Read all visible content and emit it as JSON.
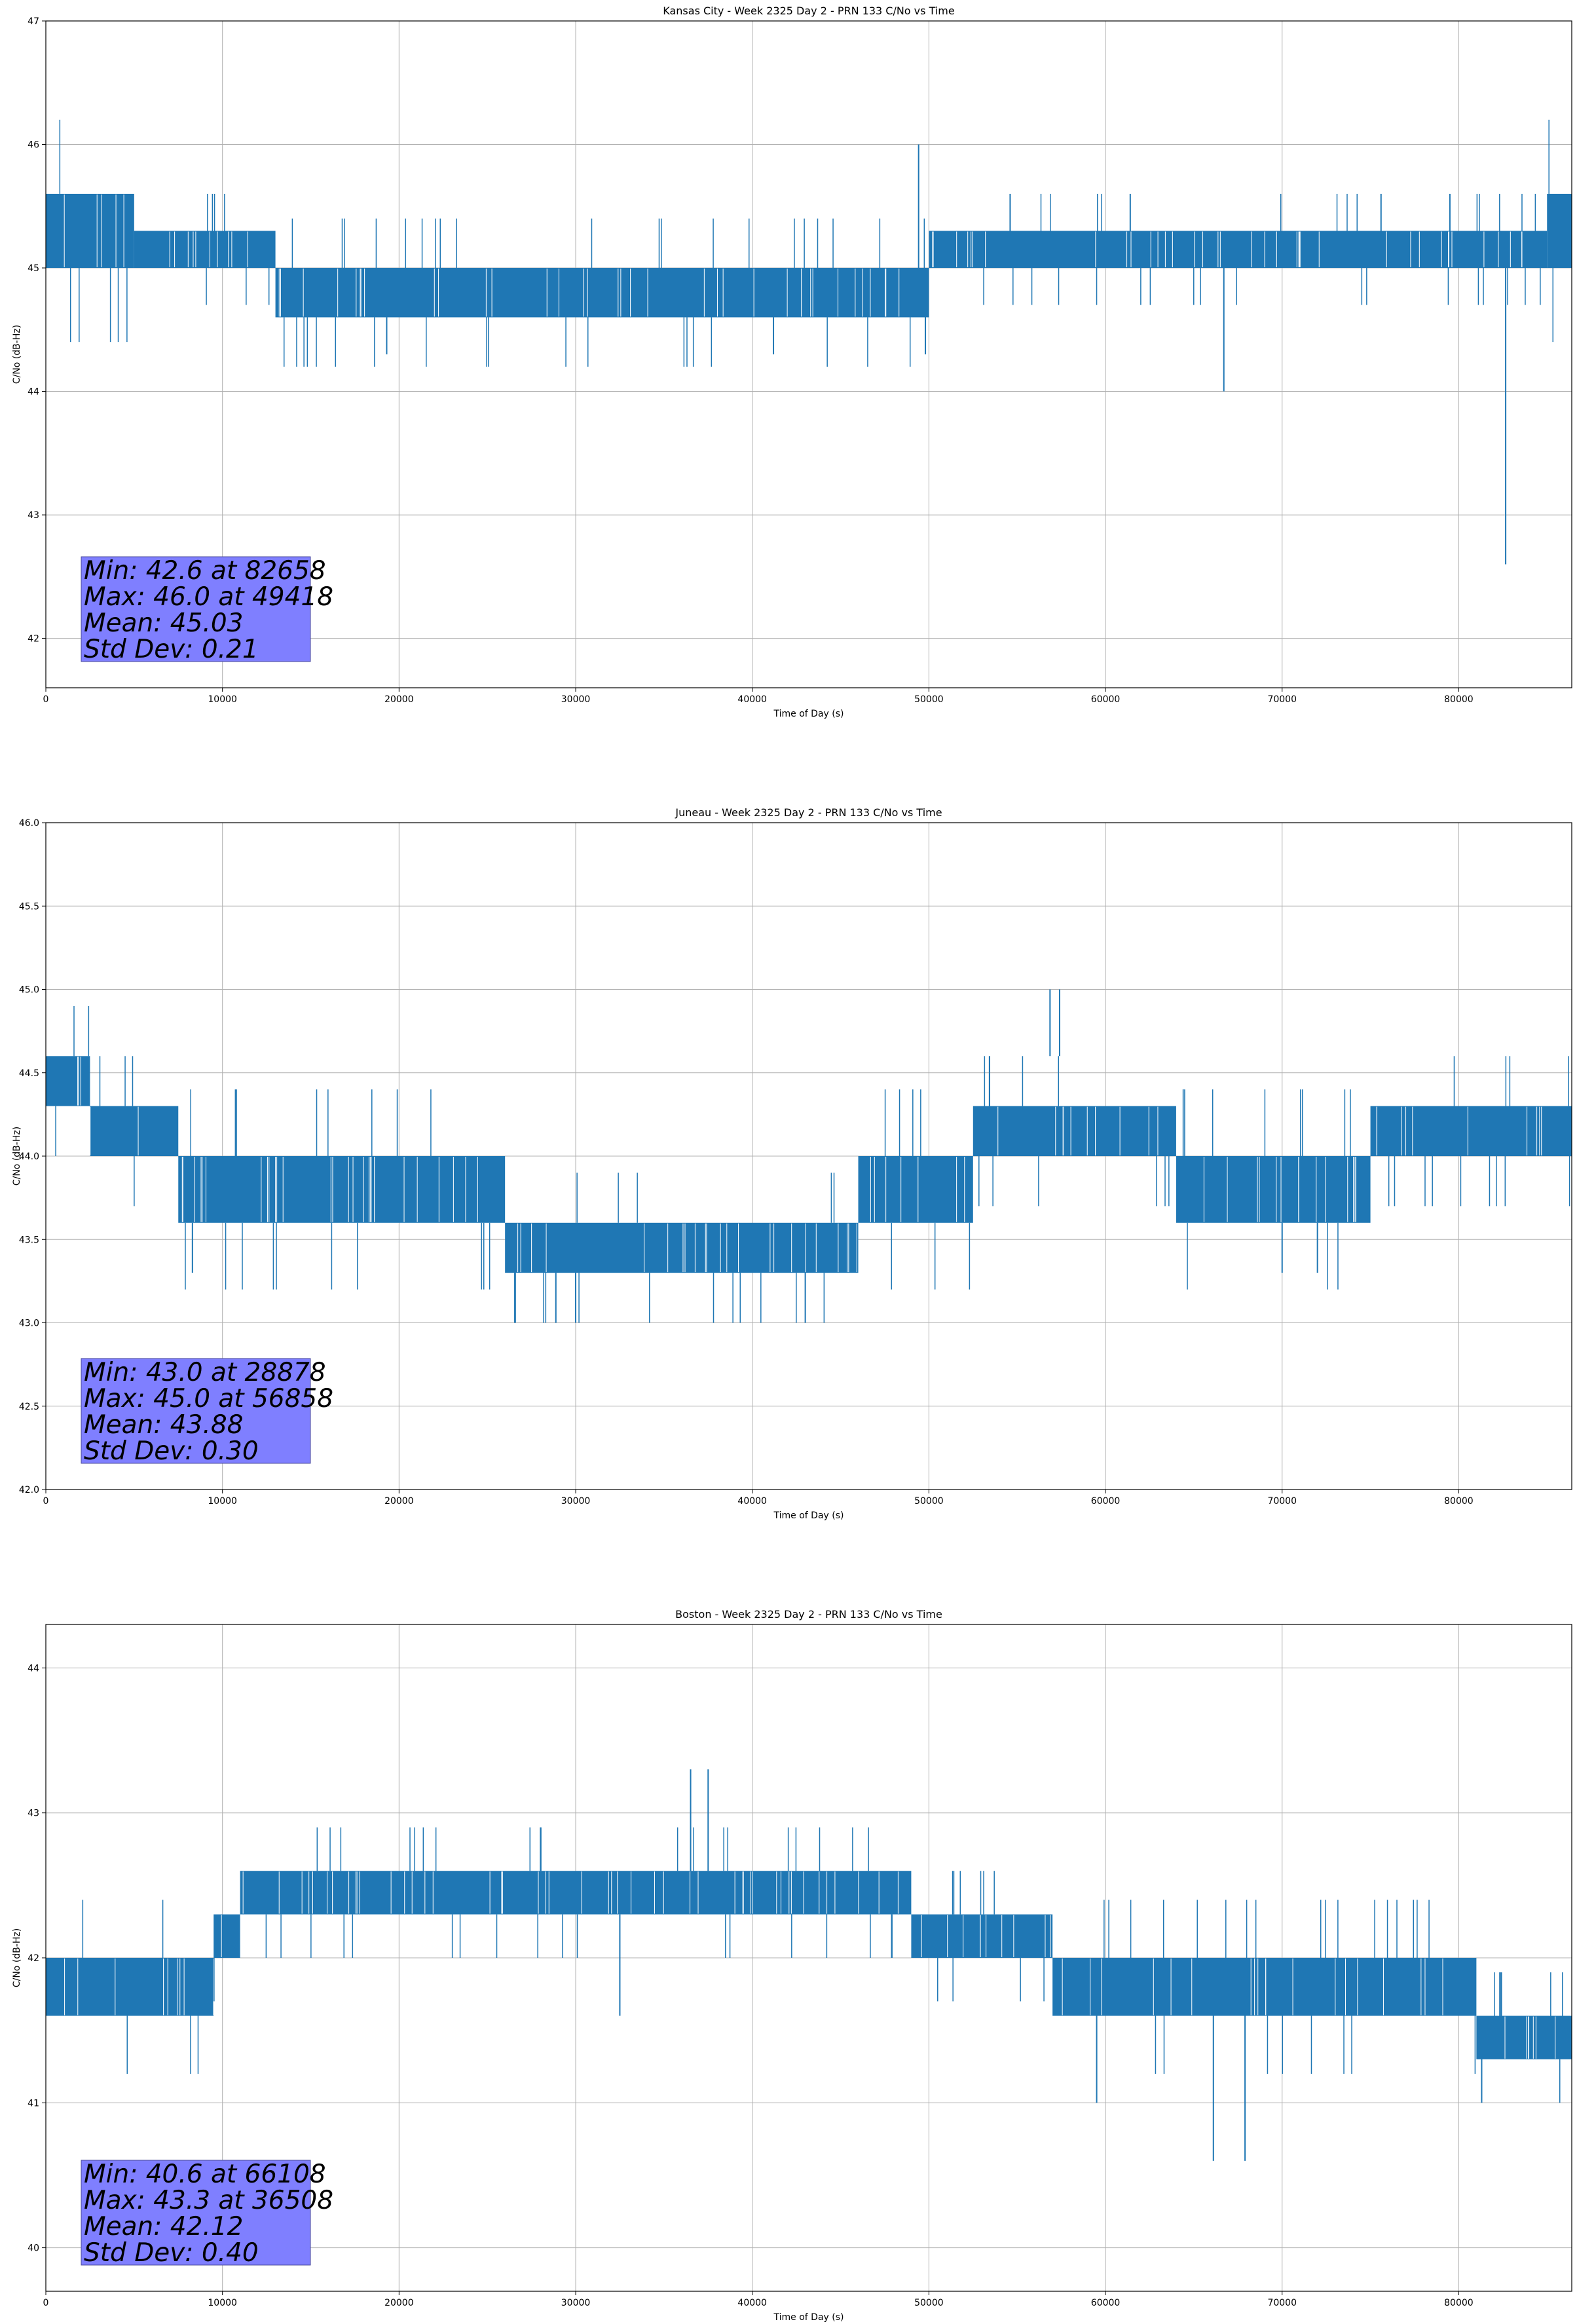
{
  "chart_data": [
    {
      "type": "line",
      "title": "Kansas City - Week 2325 Day 2 - PRN 133 C/No vs Time",
      "xlabel": "Time of Day (s)",
      "ylabel": "C/No (dB-Hz)",
      "xlim": [
        0,
        86400
      ],
      "ylim": [
        41.6,
        47.0
      ],
      "xticks": [
        0,
        10000,
        20000,
        30000,
        40000,
        50000,
        60000,
        70000,
        80000
      ],
      "yticks": [
        42,
        43,
        44,
        45,
        46,
        47
      ],
      "grid": true,
      "color": "#1f77b4",
      "bands": [
        {
          "x0": 0,
          "x1": 5000,
          "lo": 45.0,
          "hi": 45.6
        },
        {
          "x0": 5000,
          "x1": 13000,
          "lo": 45.0,
          "hi": 45.3
        },
        {
          "x0": 13000,
          "x1": 50000,
          "lo": 44.6,
          "hi": 45.0
        },
        {
          "x0": 50000,
          "x1": 85000,
          "lo": 45.0,
          "hi": 45.3
        },
        {
          "x0": 85000,
          "x1": 86400,
          "lo": 45.0,
          "hi": 45.6
        }
      ],
      "spikes": [
        {
          "x": 19300,
          "lo": 44.3,
          "hi": 44.6
        },
        {
          "x": 41200,
          "lo": 44.3,
          "hi": 44.6
        },
        {
          "x": 49418,
          "lo": 45.0,
          "hi": 46.0
        },
        {
          "x": 49800,
          "lo": 44.3,
          "hi": 45.0
        },
        {
          "x": 66700,
          "lo": 44.0,
          "hi": 45.0
        },
        {
          "x": 82658,
          "lo": 42.6,
          "hi": 45.0
        },
        {
          "x": 54600,
          "lo": 45.3,
          "hi": 45.6
        },
        {
          "x": 61400,
          "lo": 45.3,
          "hi": 45.6
        },
        {
          "x": 75600,
          "lo": 45.3,
          "hi": 45.6
        },
        {
          "x": 79500,
          "lo": 45.3,
          "hi": 45.6
        }
      ],
      "stats": [
        "Min: 42.6 at 82658",
        "Max: 46.0 at 49418",
        "Mean: 45.03",
        "Std Dev: 0.21"
      ]
    },
    {
      "type": "line",
      "title": "Juneau - Week 2325 Day 2 - PRN 133 C/No vs Time",
      "xlabel": "Time of Day (s)",
      "ylabel": "C/No (dB-Hz)",
      "xlim": [
        0,
        86400
      ],
      "ylim": [
        42.0,
        46.0
      ],
      "xticks": [
        0,
        10000,
        20000,
        30000,
        40000,
        50000,
        60000,
        70000,
        80000
      ],
      "yticks": [
        42.0,
        42.5,
        43.0,
        43.5,
        44.0,
        44.5,
        45.0,
        45.5,
        46.0
      ],
      "grid": true,
      "color": "#1f77b4",
      "bands": [
        {
          "x0": 0,
          "x1": 2500,
          "lo": 44.3,
          "hi": 44.6
        },
        {
          "x0": 2500,
          "x1": 7500,
          "lo": 44.0,
          "hi": 44.3
        },
        {
          "x0": 7500,
          "x1": 26000,
          "lo": 43.6,
          "hi": 44.0
        },
        {
          "x0": 26000,
          "x1": 46000,
          "lo": 43.3,
          "hi": 43.6
        },
        {
          "x0": 46000,
          "x1": 52500,
          "lo": 43.6,
          "hi": 44.0
        },
        {
          "x0": 52500,
          "x1": 64000,
          "lo": 44.0,
          "hi": 44.3
        },
        {
          "x0": 64000,
          "x1": 75000,
          "lo": 43.6,
          "hi": 44.0
        },
        {
          "x0": 75000,
          "x1": 86400,
          "lo": 44.0,
          "hi": 44.3
        }
      ],
      "spikes": [
        {
          "x": 28878,
          "lo": 43.0,
          "hi": 43.3
        },
        {
          "x": 30000,
          "lo": 43.0,
          "hi": 43.3
        },
        {
          "x": 43000,
          "lo": 43.0,
          "hi": 43.3
        },
        {
          "x": 56858,
          "lo": 44.6,
          "hi": 45.0
        },
        {
          "x": 57400,
          "lo": 44.6,
          "hi": 45.0
        },
        {
          "x": 8300,
          "lo": 43.3,
          "hi": 43.6
        },
        {
          "x": 70000,
          "lo": 43.3,
          "hi": 43.6
        },
        {
          "x": 72000,
          "lo": 43.3,
          "hi": 43.6
        }
      ],
      "stats": [
        "Min: 43.0 at 28878",
        "Max: 45.0 at 56858",
        "Mean: 43.88",
        "Std Dev: 0.30"
      ]
    },
    {
      "type": "line",
      "title": "Boston - Week 2325 Day 2 - PRN 133 C/No vs Time",
      "xlabel": "Time of Day (s)",
      "ylabel": "C/No (dB-Hz)",
      "xlim": [
        0,
        86400
      ],
      "ylim": [
        39.7,
        44.3
      ],
      "xticks": [
        0,
        10000,
        20000,
        30000,
        40000,
        50000,
        60000,
        70000,
        80000
      ],
      "yticks": [
        40,
        41,
        42,
        43,
        44
      ],
      "grid": true,
      "color": "#1f77b4",
      "bands": [
        {
          "x0": 0,
          "x1": 9500,
          "lo": 41.6,
          "hi": 42.0
        },
        {
          "x0": 9500,
          "x1": 11000,
          "lo": 42.0,
          "hi": 42.3
        },
        {
          "x0": 11000,
          "x1": 49000,
          "lo": 42.3,
          "hi": 42.6
        },
        {
          "x0": 49000,
          "x1": 57000,
          "lo": 42.0,
          "hi": 42.3
        },
        {
          "x0": 57000,
          "x1": 81000,
          "lo": 41.6,
          "hi": 42.0
        },
        {
          "x0": 81000,
          "x1": 86400,
          "lo": 41.3,
          "hi": 41.6
        }
      ],
      "spikes": [
        {
          "x": 36508,
          "lo": 42.6,
          "hi": 43.3
        },
        {
          "x": 37500,
          "lo": 42.6,
          "hi": 43.3
        },
        {
          "x": 66108,
          "lo": 40.6,
          "hi": 41.6
        },
        {
          "x": 67900,
          "lo": 40.6,
          "hi": 41.6
        },
        {
          "x": 32500,
          "lo": 41.6,
          "hi": 42.3
        },
        {
          "x": 59500,
          "lo": 41.0,
          "hi": 41.6
        },
        {
          "x": 81300,
          "lo": 41.0,
          "hi": 41.3
        }
      ],
      "stats": [
        "Min: 40.6 at 66108",
        "Max: 43.3 at 36508",
        "Mean: 42.12",
        "Std Dev: 0.40"
      ]
    }
  ]
}
